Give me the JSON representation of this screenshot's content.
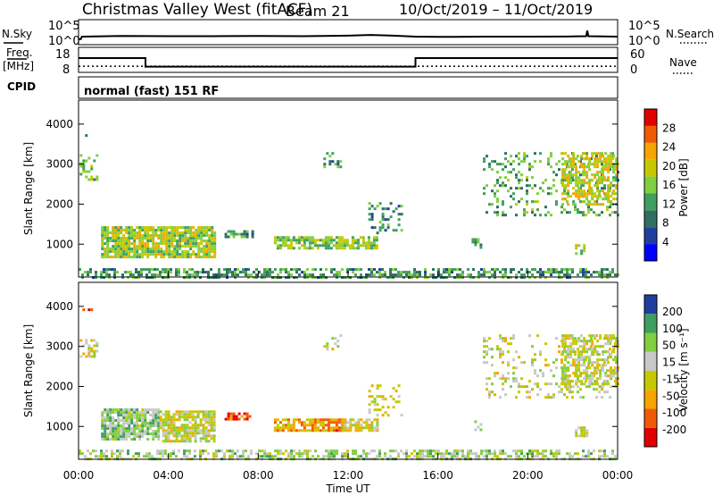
{
  "header": {
    "site": "Christmas Valley West (fitACF)",
    "beam": "Beam 21",
    "dates": "10/Oct/2019 – 11/Oct/2019"
  },
  "left_labels": {
    "nsky": "N.Sky",
    "freq_line1": "Freq.",
    "freq_line2": "[MHz]",
    "cpid": "CPID"
  },
  "right_labels": {
    "nsearch": "N.Search",
    "nave": "Nave"
  },
  "cpid_text": "normal (fast) 151 RF",
  "chart_data": [
    {
      "type": "line",
      "panel": "noise",
      "x": [
        0,
        0.1,
        0.15,
        0.2,
        2,
        4,
        6,
        8,
        10,
        12,
        13,
        14,
        15,
        16,
        18,
        20,
        22,
        22.6,
        22.65,
        22.7,
        24
      ],
      "series": [
        {
          "values": [
            1.1,
            1.1,
            1.6,
            1.6,
            1.75,
            1.7,
            1.7,
            1.75,
            1.7,
            1.8,
            1.95,
            1.8,
            1.6,
            1.55,
            1.6,
            1.6,
            1.65,
            1.7,
            2.8,
            1.7,
            1.6
          ]
        }
      ],
      "left_ticks": [
        "10^5",
        "10^0"
      ],
      "right_ticks": [
        "10^5",
        "10^0"
      ],
      "xlim": [
        0,
        24
      ]
    },
    {
      "type": "line",
      "panel": "frequency",
      "x": [
        0,
        2.98,
        2.98,
        15.0,
        15.0,
        24
      ],
      "series": [
        {
          "values": [
            13.7,
            13.7,
            10.3,
            10.3,
            13.7,
            13.7
          ]
        },
        {
          "values": [
            14.8,
            14.8,
            14.8,
            14.8,
            14.8,
            14.8
          ],
          "dotted": true
        }
      ],
      "left_ticks": [
        "18",
        "8"
      ],
      "right_ticks": [
        "60",
        "0"
      ],
      "ylim_left": [
        8,
        18
      ],
      "ylim_right": [
        0,
        60
      ],
      "xlim": [
        0,
        24
      ]
    },
    {
      "type": "heatmap",
      "panel": "power",
      "ylabel": "Slant Range [km]",
      "yticks": [
        "4000",
        "3000",
        "2000",
        "1000"
      ],
      "ytick_values": [
        4000,
        3000,
        2000,
        1000
      ],
      "ylim": [
        180,
        4600
      ],
      "xlim": [
        0,
        24
      ],
      "colorbar_label": "Power [dB]",
      "colorbar_ticks": [
        "4",
        "8",
        "12",
        "16",
        "20",
        "24",
        "28"
      ],
      "colorbar_range": [
        0,
        32
      ],
      "colors": [
        "#0000ff",
        "#1f3f9f",
        "#2f6f5f",
        "#3f9f5f",
        "#7fcf3f",
        "#c8c800",
        "#f7a400",
        "#f05a00",
        "#e00000"
      ],
      "regions": [
        {
          "t0": 0.05,
          "t1": 0.7,
          "r0": 3700,
          "r1": 4150,
          "density": 0.15,
          "level": 0.3
        },
        {
          "t0": 0.05,
          "t1": 0.8,
          "r0": 2600,
          "r1": 3250,
          "density": 0.35,
          "level": 0.45
        },
        {
          "t0": 1.0,
          "t1": 6.1,
          "r0": 650,
          "r1": 1450,
          "density": 0.85,
          "level": 0.55
        },
        {
          "t0": 6.5,
          "t1": 7.7,
          "r0": 1150,
          "r1": 1350,
          "density": 0.6,
          "level": 0.35
        },
        {
          "t0": 8.7,
          "t1": 13.3,
          "r0": 900,
          "r1": 1200,
          "density": 0.75,
          "level": 0.5
        },
        {
          "t0": 10.9,
          "t1": 11.7,
          "r0": 2900,
          "r1": 3300,
          "density": 0.3,
          "level": 0.35
        },
        {
          "t0": 12.9,
          "t1": 14.4,
          "r0": 1300,
          "r1": 2050,
          "density": 0.25,
          "level": 0.3
        },
        {
          "t0": 17.5,
          "t1": 17.9,
          "r0": 900,
          "r1": 1150,
          "density": 0.4,
          "level": 0.4
        },
        {
          "t0": 18.0,
          "t1": 24.0,
          "r0": 1700,
          "r1": 3300,
          "density": 0.22,
          "level": 0.4
        },
        {
          "t0": 21.5,
          "t1": 24.0,
          "r0": 2000,
          "r1": 3300,
          "density": 0.55,
          "level": 0.6
        },
        {
          "t0": 22.1,
          "t1": 22.6,
          "r0": 750,
          "r1": 1000,
          "density": 0.6,
          "level": 0.55
        },
        {
          "t0": 0.0,
          "t1": 24.0,
          "r0": 180,
          "r1": 400,
          "density": 0.55,
          "level": 0.35
        }
      ]
    },
    {
      "type": "heatmap",
      "panel": "velocity",
      "ylabel": "Slant Range [km]",
      "yticks": [
        "4000",
        "3000",
        "2000",
        "1000"
      ],
      "ytick_values": [
        4000,
        3000,
        2000,
        1000
      ],
      "ylim": [
        180,
        4600
      ],
      "xlabel": "Time UT",
      "xticks": [
        "00:00",
        "04:00",
        "08:00",
        "12:00",
        "16:00",
        "20:00",
        "00:00"
      ],
      "xtick_values": [
        0,
        4,
        8,
        12,
        16,
        20,
        24
      ],
      "xlim": [
        0,
        24
      ],
      "colorbar_label": "Velocity [m s⁻¹]",
      "colorbar_ticks": [
        "-200",
        "-100",
        "-50",
        "-15",
        "15",
        "50",
        "100",
        "200"
      ],
      "colors": [
        "#e00000",
        "#f05a00",
        "#f7a400",
        "#c8c800",
        "#c8c8c8",
        "#7fcf3f",
        "#3f9f5f",
        "#1f3f9f"
      ],
      "regions": [
        {
          "t0": 0.05,
          "t1": 0.7,
          "r0": 3750,
          "r1": 4150,
          "density": 0.12,
          "level": 0.1
        },
        {
          "t0": 0.05,
          "t1": 0.8,
          "r0": 2650,
          "r1": 3250,
          "density": 0.35,
          "level": 0.5
        },
        {
          "t0": 1.0,
          "t1": 3.6,
          "r0": 650,
          "r1": 1450,
          "density": 0.85,
          "level": 0.68
        },
        {
          "t0": 3.6,
          "t1": 6.1,
          "r0": 650,
          "r1": 1400,
          "density": 0.8,
          "level": 0.52
        },
        {
          "t0": 6.5,
          "t1": 7.7,
          "r0": 1150,
          "r1": 1350,
          "density": 0.6,
          "level": 0.12
        },
        {
          "t0": 8.7,
          "t1": 11.7,
          "r0": 900,
          "r1": 1200,
          "density": 0.75,
          "level": 0.28
        },
        {
          "t0": 11.7,
          "t1": 13.3,
          "r0": 900,
          "r1": 1200,
          "density": 0.7,
          "level": 0.5
        },
        {
          "t0": 10.9,
          "t1": 11.7,
          "r0": 2900,
          "r1": 3300,
          "density": 0.3,
          "level": 0.55
        },
        {
          "t0": 12.9,
          "t1": 14.4,
          "r0": 1300,
          "r1": 2050,
          "density": 0.25,
          "level": 0.52
        },
        {
          "t0": 17.5,
          "t1": 17.9,
          "r0": 900,
          "r1": 1150,
          "density": 0.4,
          "level": 0.52
        },
        {
          "t0": 18.0,
          "t1": 24.0,
          "r0": 1700,
          "r1": 3300,
          "density": 0.22,
          "level": 0.5
        },
        {
          "t0": 21.5,
          "t1": 24.0,
          "r0": 2000,
          "r1": 3300,
          "density": 0.55,
          "level": 0.55
        },
        {
          "t0": 22.1,
          "t1": 22.6,
          "r0": 750,
          "r1": 1000,
          "density": 0.6,
          "level": 0.5
        },
        {
          "t0": 0.0,
          "t1": 24.0,
          "r0": 180,
          "r1": 420,
          "density": 0.55,
          "level": 0.63
        }
      ]
    }
  ]
}
